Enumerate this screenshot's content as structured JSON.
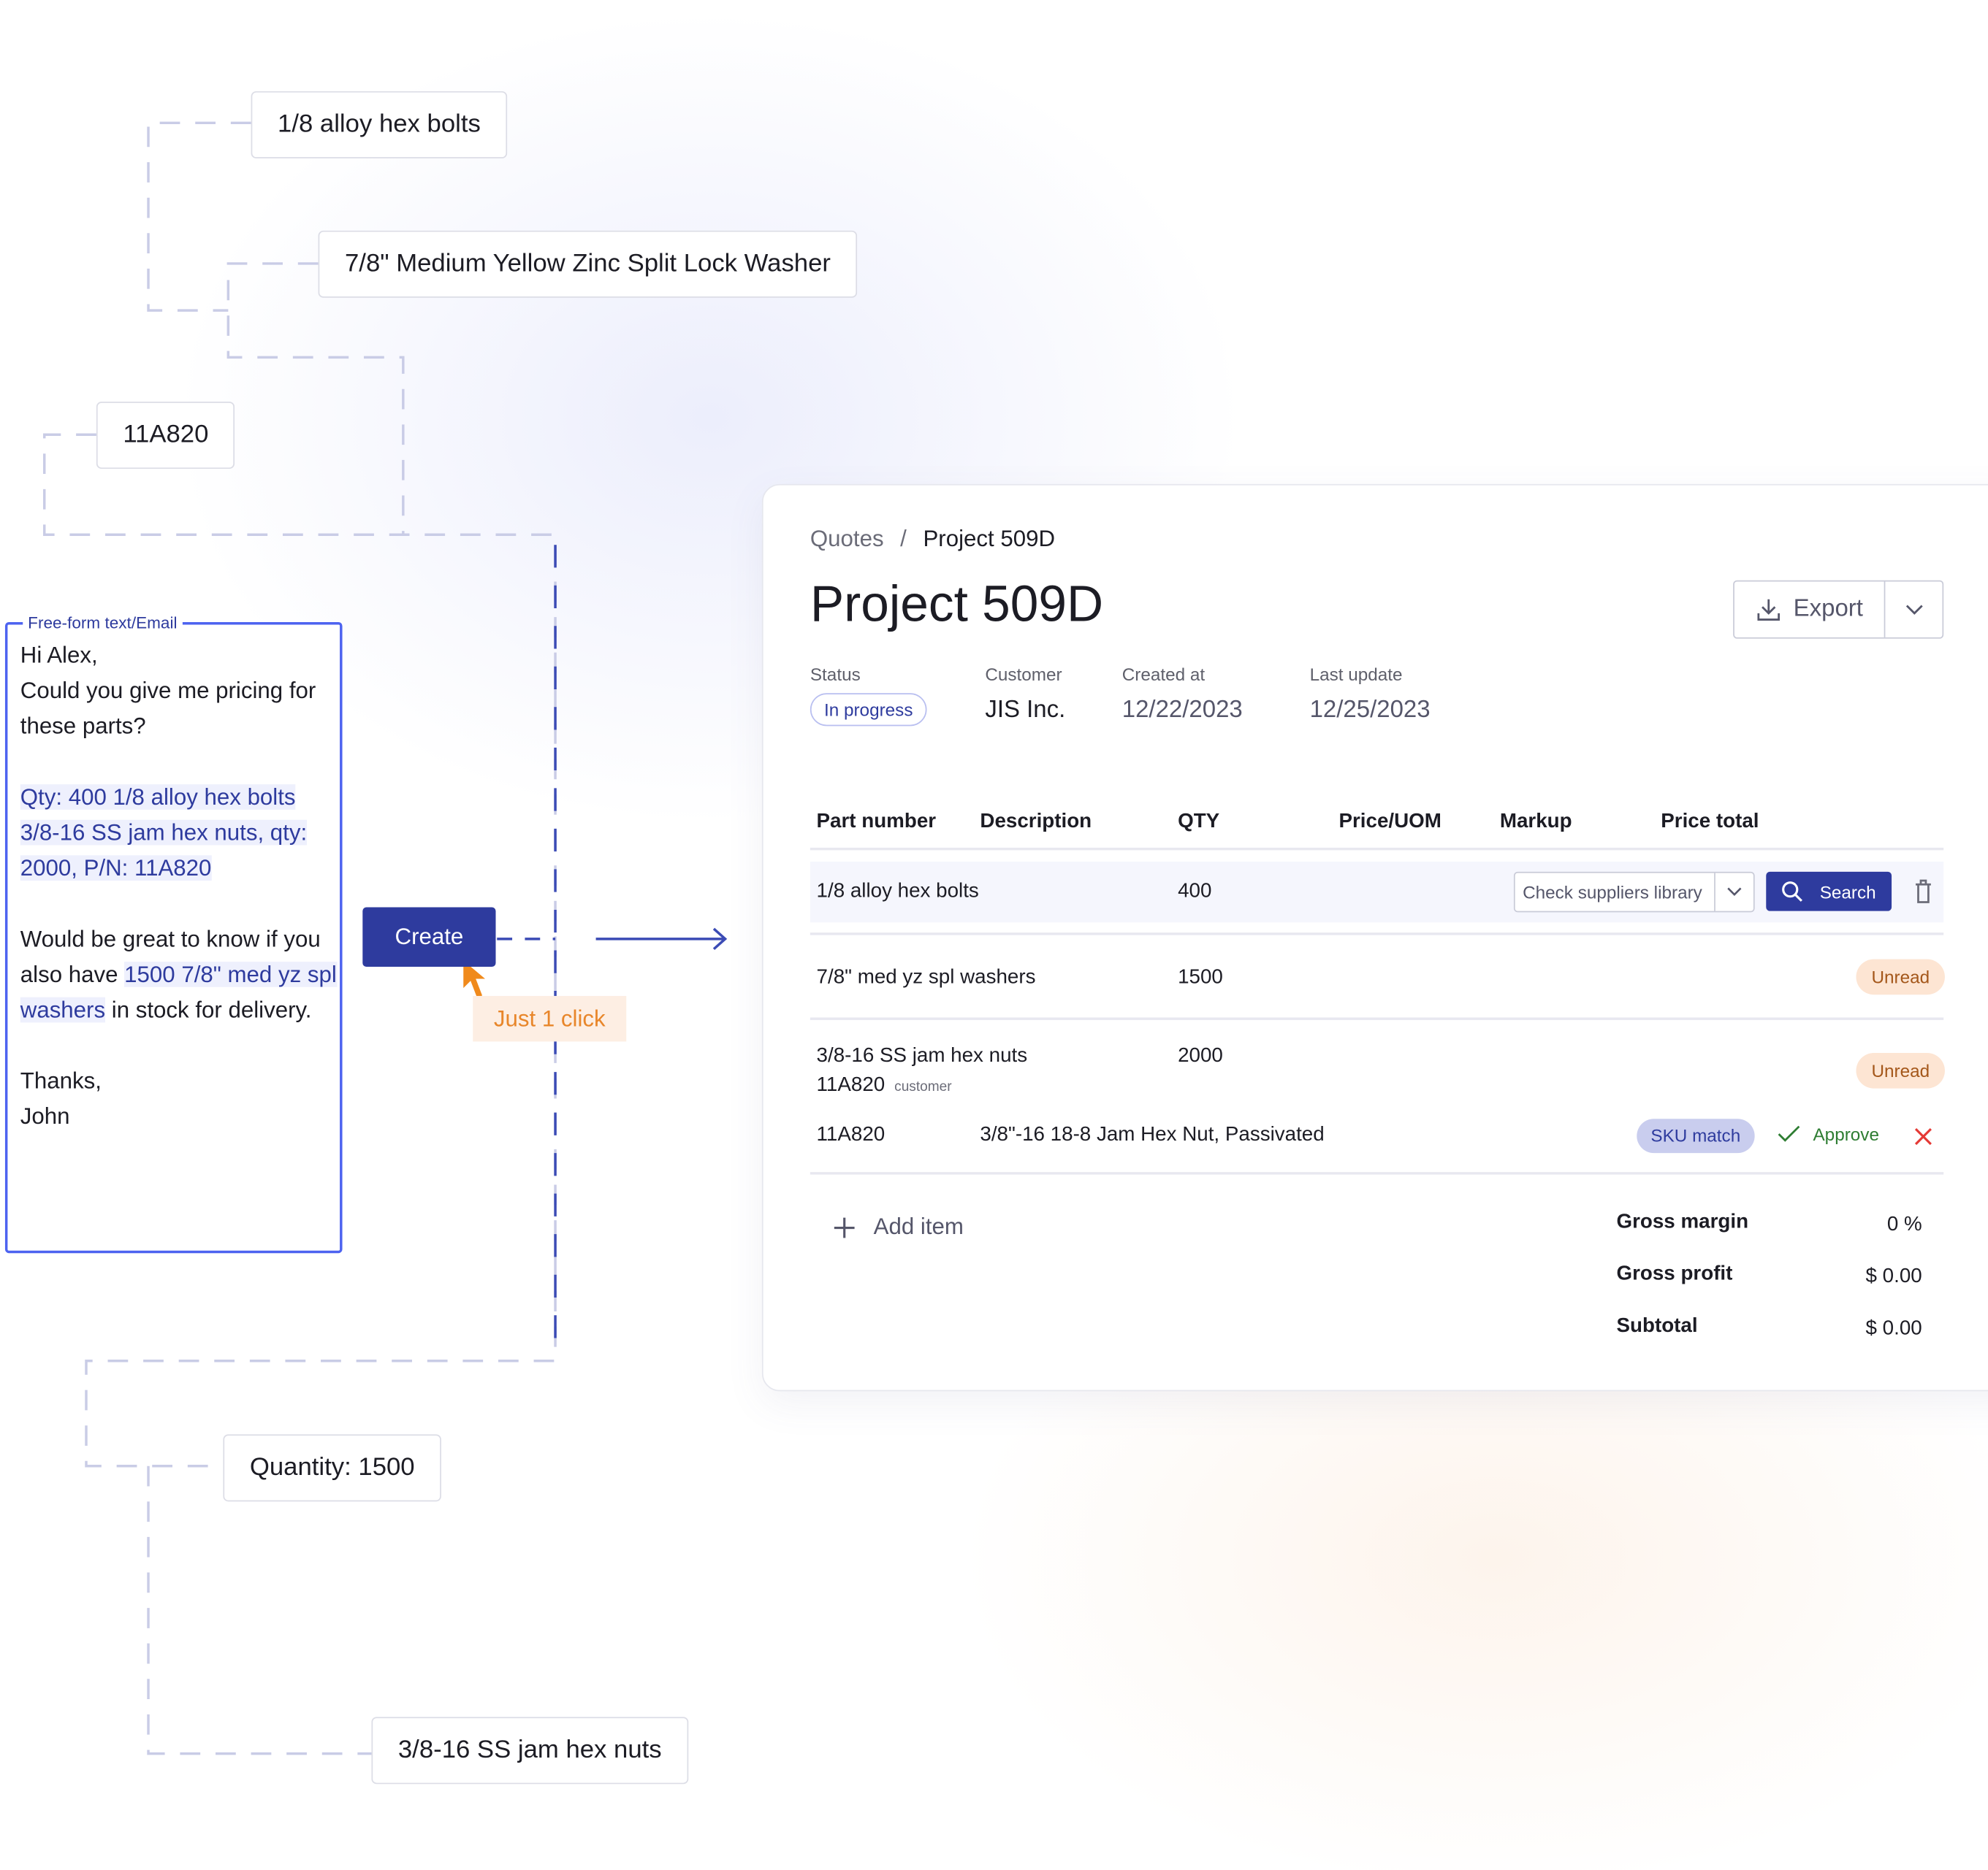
{
  "chips": {
    "bolts": "1/8 alloy hex bolts",
    "washer": "7/8\" Medium Yellow Zinc Split Lock Washer",
    "sku": "11A820",
    "quantity": "Quantity: 1500",
    "nuts": "3/8-16 SS jam hex nuts"
  },
  "email": {
    "legend": "Free-form text/Email",
    "greeting": "Hi Alex,",
    "ask": "Could you give me pricing for these parts?",
    "hl1": "Qty: 400 1/8 alloy hex bolts",
    "hl2": "3/8-16 SS jam hex nuts, qty: 2000, P/N: 11A820",
    "p2a": "Would be great to know if you also have ",
    "hl3": "1500 7/8\" med yz spl washers",
    "p2b": " in stock for delivery.",
    "thanks": "Thanks,",
    "name": "John"
  },
  "create_label": "Create",
  "click_note": "Just 1 click",
  "card": {
    "breadcrumb": {
      "parent": "Quotes",
      "sep": "/",
      "current": "Project 509D"
    },
    "title": "Project 509D",
    "export_label": "Export",
    "meta": {
      "status_label": "Status",
      "status": "In progress",
      "customer_label": "Customer",
      "customer": "JIS Inc.",
      "created_label": "Created at",
      "created": "12/22/2023",
      "updated_label": "Last update",
      "updated": "12/25/2023"
    },
    "columns": [
      "Part number",
      "Description",
      "QTY",
      "Price/UOM",
      "Markup",
      "Price total"
    ],
    "rows": [
      {
        "part": "1/8 alloy hex bolts",
        "qty": "400",
        "select": "Check suppliers library",
        "search": "Search"
      },
      {
        "part": "7/8\" med yz spl washers",
        "qty": "1500",
        "badge": "Unread"
      },
      {
        "part": "3/8-16 SS jam hex nuts",
        "sku": "11A820",
        "sku_note": "customer",
        "qty": "2000",
        "badge": "Unread",
        "match": {
          "part": "11A820",
          "desc": "3/8\"-16 18-8 Jam Hex Nut, Passivated",
          "badge": "SKU match",
          "approve": "Approve"
        }
      }
    ],
    "add_item": "Add item",
    "totals": [
      {
        "label": "Gross margin",
        "value": "0 %"
      },
      {
        "label": "Gross profit",
        "value": "$ 0.00"
      },
      {
        "label": "Subtotal",
        "value": "$ 0.00"
      }
    ]
  },
  "colors": {
    "primary": "#2e3b9e",
    "accent_border": "#4d63f0",
    "orange": "#e8862a",
    "unread_bg": "#fde5d3",
    "sku_bg": "#c9cdee",
    "approve": "#2e7d32",
    "reject": "#e53935"
  }
}
